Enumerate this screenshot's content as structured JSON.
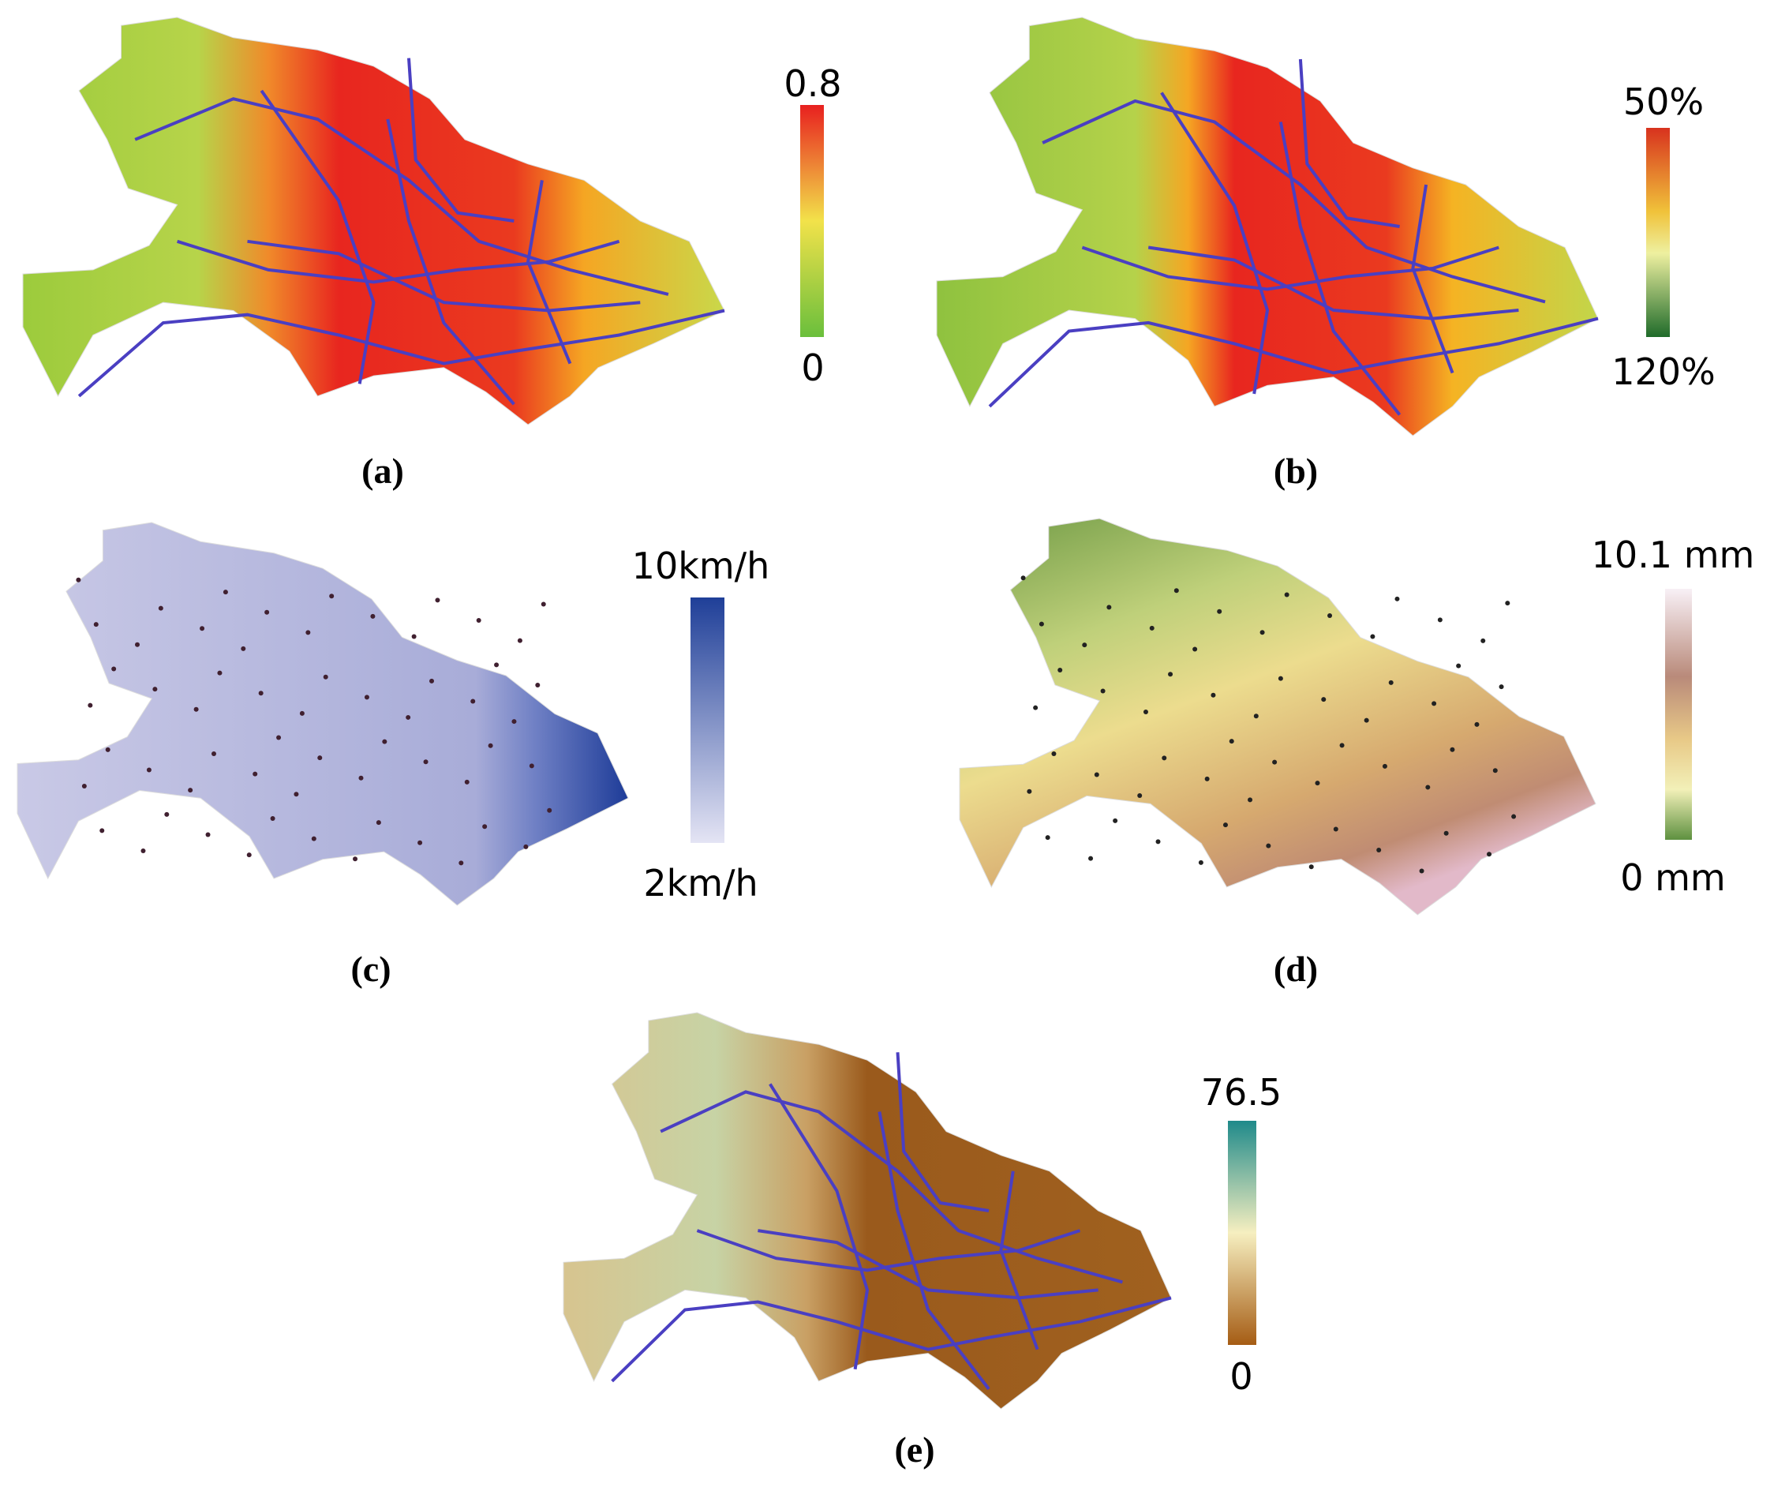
{
  "panels": [
    {
      "caption": "(a)",
      "legend": {
        "max": "0.8",
        "min": "0"
      }
    },
    {
      "caption": "(b)",
      "legend": {
        "max": "50%",
        "min": "120%"
      }
    },
    {
      "caption": "(c)",
      "legend": {
        "max": "10km/h",
        "min": "2km/h"
      }
    },
    {
      "caption": "(d)",
      "legend": {
        "max": "10.1 mm",
        "min": "0 mm"
      }
    },
    {
      "caption": "(e)",
      "legend": {
        "max": "76.5",
        "min": "0"
      }
    }
  ]
}
